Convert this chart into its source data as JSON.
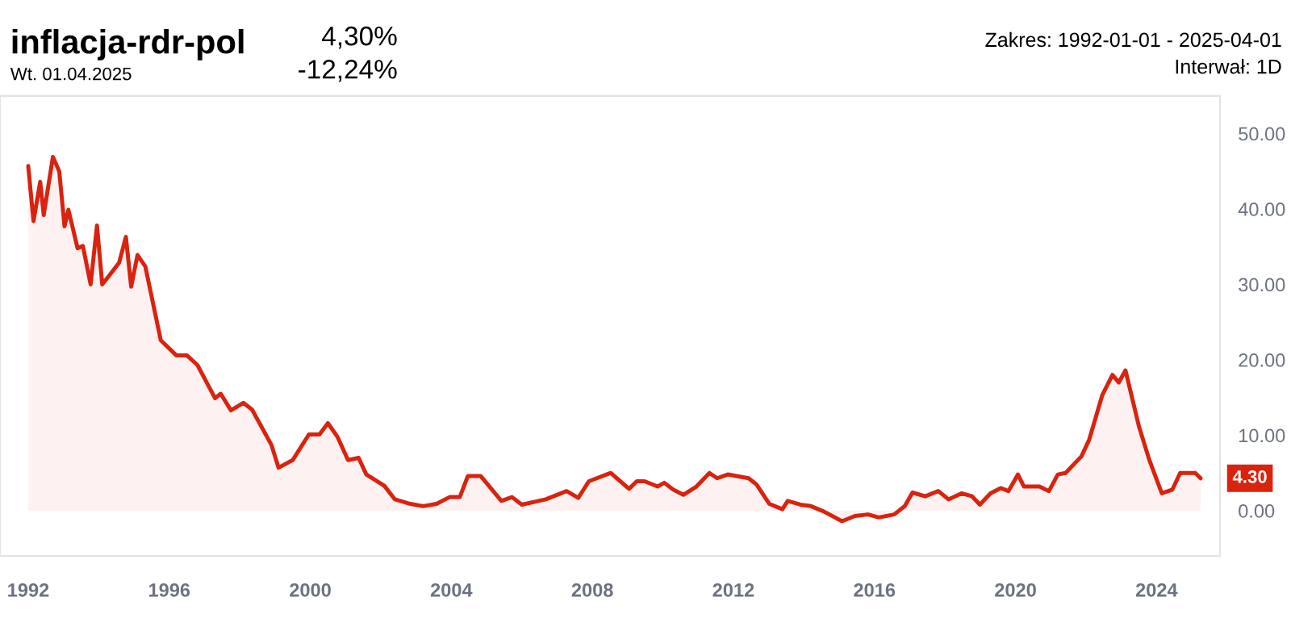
{
  "chart_data": {
    "type": "area",
    "title": "inflacja-rdr-pol",
    "subtitle": "Wt. 01.04.2025",
    "annotations": [
      {
        "text": "4,30%"
      },
      {
        "text": "-12,24%"
      },
      {
        "text": "Zakres: 1992-01-01 - 2025-04-01"
      },
      {
        "text": "Interwał: 1D"
      },
      {
        "text": "4.30",
        "x": 2025.25,
        "y": 4.3
      }
    ],
    "series": [
      {
        "color": "#d9230f",
        "x": [
          1992.0,
          1992.15,
          1992.34,
          1992.44,
          1992.7,
          1992.88,
          1993.03,
          1993.14,
          1993.4,
          1993.55,
          1993.77,
          1993.95,
          1994.1,
          1994.4,
          1994.58,
          1994.77,
          1994.92,
          1995.1,
          1995.32,
          1995.76,
          1996.2,
          1996.5,
          1996.8,
          1997.3,
          1997.46,
          1997.75,
          1998.1,
          1998.35,
          1998.9,
          1999.1,
          1999.5,
          1999.96,
          2000.26,
          2000.5,
          2000.77,
          2001.07,
          2001.37,
          2001.59,
          2002.1,
          2002.4,
          2002.84,
          2003.2,
          2003.58,
          2003.95,
          2004.24,
          2004.47,
          2004.83,
          2005.42,
          2005.72,
          2006.0,
          2006.68,
          2007.27,
          2007.6,
          2007.9,
          2008.52,
          2009.04,
          2009.26,
          2009.48,
          2009.85,
          2010.04,
          2010.29,
          2010.58,
          2010.95,
          2011.32,
          2011.54,
          2011.84,
          2012.43,
          2012.65,
          2013.02,
          2013.39,
          2013.54,
          2013.9,
          2014.2,
          2014.56,
          2015.08,
          2015.45,
          2015.82,
          2016.12,
          2016.56,
          2016.86,
          2017.08,
          2017.44,
          2017.81,
          2018.1,
          2018.47,
          2018.77,
          2018.99,
          2019.29,
          2019.58,
          2019.8,
          2020.07,
          2020.24,
          2020.68,
          2020.95,
          2021.2,
          2021.42,
          2021.87,
          2022.09,
          2022.46,
          2022.75,
          2022.93,
          2023.12,
          2023.5,
          2023.79,
          2024.15,
          2024.45,
          2024.67,
          2024.8,
          2025.1,
          2025.25
        ],
        "values": [
          45.7,
          38.4,
          43.6,
          39.2,
          46.9,
          45.0,
          37.7,
          39.9,
          34.8,
          35.1,
          30.0,
          37.8,
          30.0,
          31.8,
          32.9,
          36.3,
          29.7,
          33.9,
          32.4,
          22.6,
          20.6,
          20.6,
          19.3,
          14.9,
          15.5,
          13.3,
          14.3,
          13.4,
          8.7,
          5.7,
          6.7,
          10.1,
          10.1,
          11.6,
          9.8,
          6.7,
          7.0,
          4.8,
          3.3,
          1.5,
          0.9,
          0.6,
          0.9,
          1.8,
          1.8,
          4.6,
          4.6,
          1.3,
          1.8,
          0.8,
          1.5,
          2.6,
          1.7,
          3.9,
          5.0,
          2.9,
          3.9,
          3.9,
          3.2,
          3.7,
          2.8,
          2.1,
          3.2,
          5.0,
          4.3,
          4.8,
          4.3,
          3.5,
          0.9,
          0.2,
          1.3,
          0.8,
          0.6,
          -0.1,
          -1.4,
          -0.7,
          -0.5,
          -0.9,
          -0.5,
          0.6,
          2.4,
          1.9,
          2.6,
          1.5,
          2.3,
          1.9,
          0.8,
          2.3,
          3.0,
          2.6,
          4.8,
          3.2,
          3.2,
          2.6,
          4.8,
          5.0,
          7.2,
          9.4,
          15.3,
          18.0,
          17.0,
          18.6,
          11.2,
          6.8,
          2.3,
          2.8,
          5.0,
          5.0,
          5.0,
          4.3
        ]
      }
    ],
    "xlim": [
      1991.2,
      2025.8
    ],
    "xticks": [
      1992,
      1996,
      2000,
      2004,
      2008,
      2012,
      2016,
      2020,
      2024
    ],
    "ylim": [
      -6,
      55
    ],
    "yticks": [
      {
        "value": 0,
        "label": "0.00"
      },
      {
        "value": 10,
        "label": "10.00"
      },
      {
        "value": 20,
        "label": "20.00"
      },
      {
        "value": 30,
        "label": "30.00"
      },
      {
        "value": 40,
        "label": "40.00"
      },
      {
        "value": 50,
        "label": "50.00"
      }
    ],
    "grid": false,
    "legend": false
  }
}
